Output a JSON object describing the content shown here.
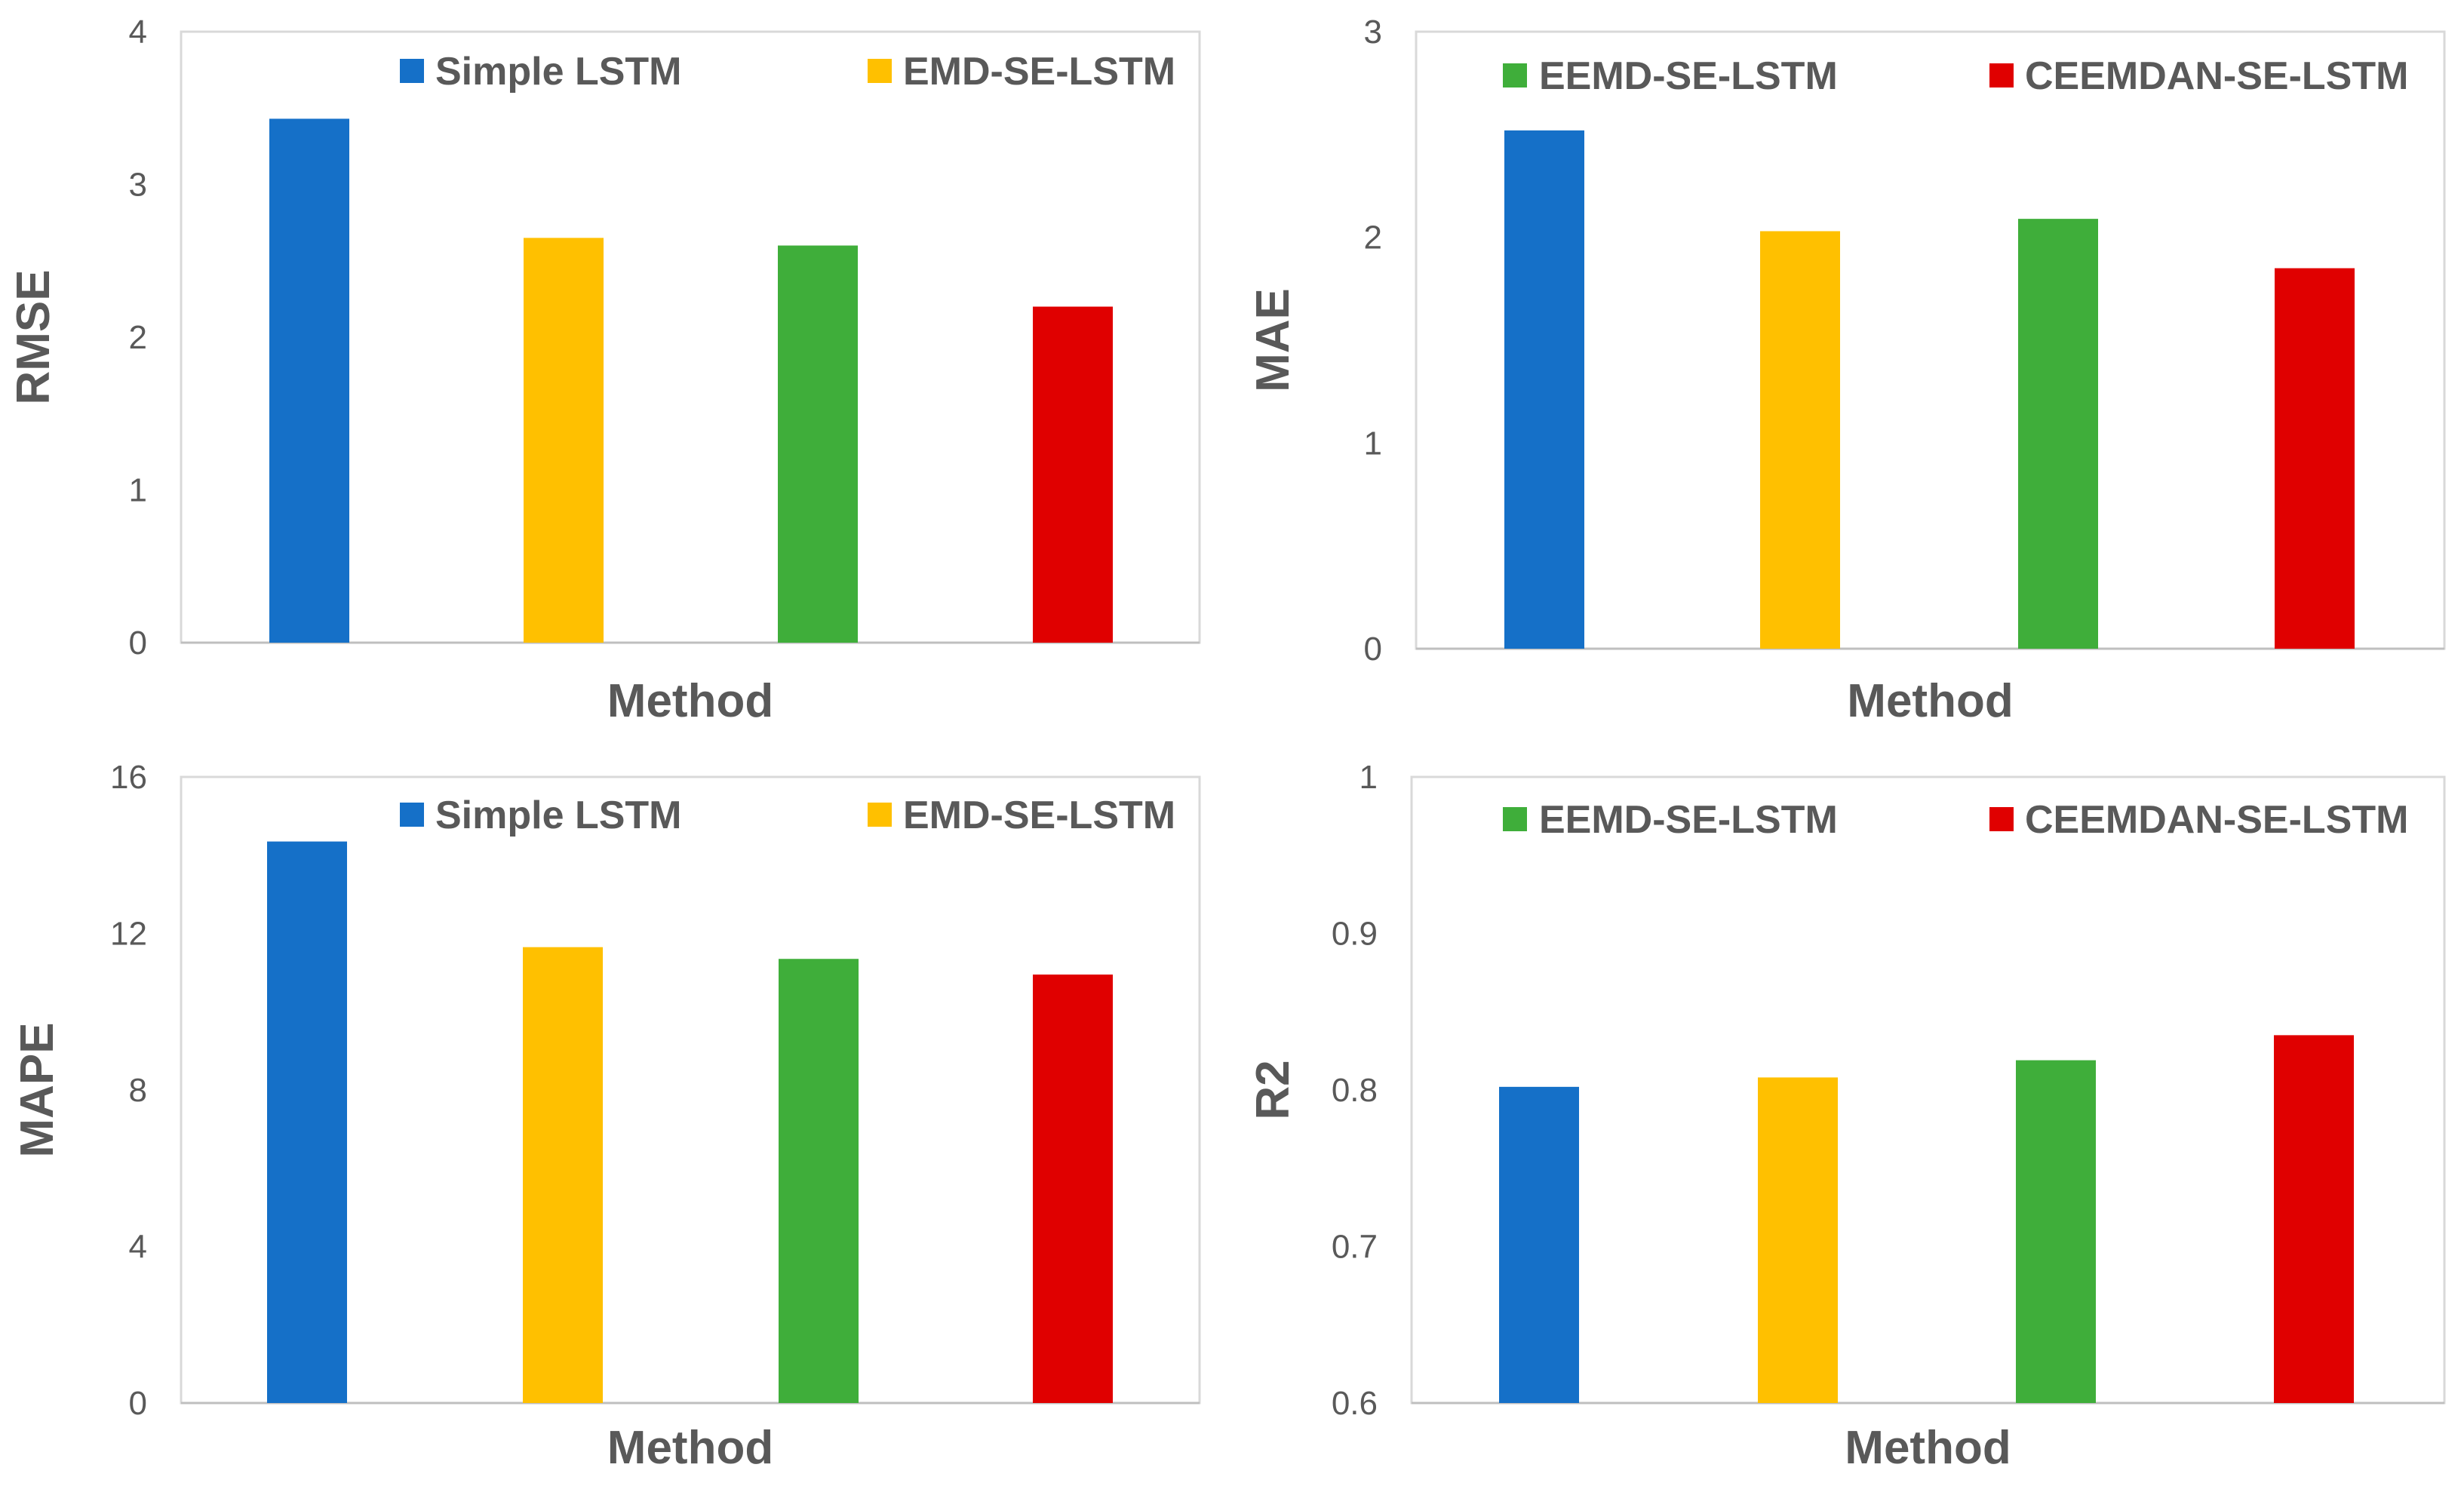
{
  "legend_entries": [
    "Simple LSTM",
    "EMD-SE-LSTM",
    "EEMD-SE-LSTM",
    "CEEMDAN-SE-LSTM"
  ],
  "colors": {
    "Simple LSTM": "#1570C8",
    "EMD-SE-LSTM": "#FFC000",
    "EEMD-SE-LSTM": "#3FAE3A",
    "CEEMDAN-SE-LSTM": "#E00000"
  },
  "chart_data": [
    {
      "type": "bar",
      "panel": "top-left",
      "title": "",
      "categories": [
        "Simple LSTM",
        "EMD-SE-LSTM",
        "EEMD-SE-LSTM",
        "CEEMDAN-SE-LSTM"
      ],
      "values": [
        3.43,
        2.65,
        2.6,
        2.2
      ],
      "xlabel": "Method",
      "ylabel": "RMSE",
      "ylim": [
        0,
        4
      ],
      "yticks": [
        0,
        1,
        2,
        3,
        4
      ],
      "ytick_labels": [
        "0",
        "1",
        "2",
        "3",
        "4"
      ],
      "legend": [
        "Simple LSTM",
        "EMD-SE-LSTM"
      ],
      "legend_position": "top"
    },
    {
      "type": "bar",
      "panel": "top-right",
      "title": "",
      "categories": [
        "Simple LSTM",
        "EMD-SE-LSTM",
        "EEMD-SE-LSTM",
        "CEEMDAN-SE-LSTM"
      ],
      "values": [
        2.52,
        2.03,
        2.09,
        1.85
      ],
      "xlabel": "Method",
      "ylabel": "MAE",
      "ylim": [
        0,
        3
      ],
      "yticks": [
        0,
        1,
        2,
        3
      ],
      "ytick_labels": [
        "0",
        "1",
        "2",
        "3"
      ],
      "legend": [
        "EEMD-SE-LSTM",
        "CEEMDAN-SE-LSTM"
      ],
      "legend_position": "top"
    },
    {
      "type": "bar",
      "panel": "bottom-left",
      "title": "",
      "categories": [
        "Simple LSTM",
        "EMD-SE-LSTM",
        "EEMD-SE-LSTM",
        "CEEMDAN-SE-LSTM"
      ],
      "values": [
        14.35,
        11.65,
        11.35,
        10.95
      ],
      "xlabel": "Method",
      "ylabel": "MAPE",
      "ylim": [
        0,
        16
      ],
      "yticks": [
        0,
        4,
        8,
        12,
        16
      ],
      "ytick_labels": [
        "0",
        "4",
        "8",
        "12",
        "16"
      ],
      "legend": [
        "Simple LSTM",
        "EMD-SE-LSTM"
      ],
      "legend_position": "top"
    },
    {
      "type": "bar",
      "panel": "bottom-right",
      "title": "",
      "categories": [
        "Simple LSTM",
        "EMD-SE-LSTM",
        "EEMD-SE-LSTM",
        "CEEMDAN-SE-LSTM"
      ],
      "values": [
        0.802,
        0.808,
        0.819,
        0.835
      ],
      "xlabel": "Method",
      "ylabel": "R2",
      "ylim": [
        0.6,
        1
      ],
      "yticks": [
        0.6,
        0.7,
        0.8,
        0.9,
        1
      ],
      "ytick_labels": [
        "0.6",
        "0.7",
        "0.8",
        "0.9",
        "1"
      ],
      "legend": [
        "EEMD-SE-LSTM",
        "CEEMDAN-SE-LSTM"
      ],
      "legend_position": "top"
    }
  ]
}
